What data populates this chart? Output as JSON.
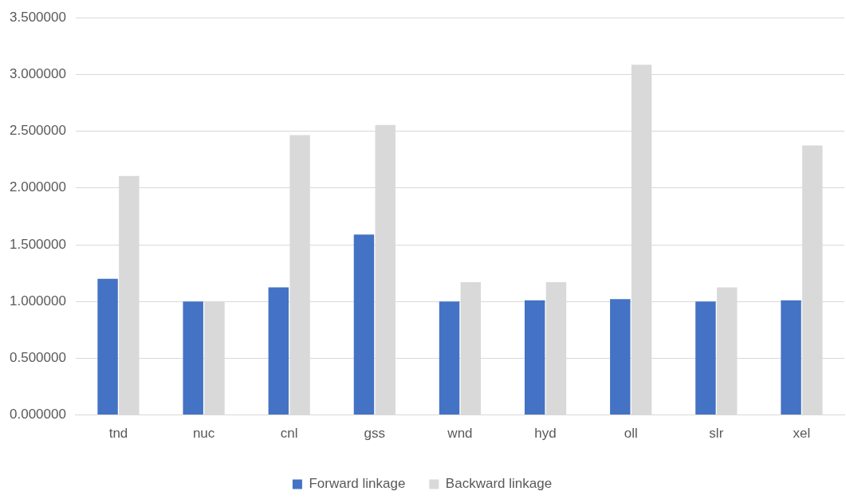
{
  "chart_data": {
    "type": "bar",
    "categories": [
      "tnd",
      "nuc",
      "cnl",
      "gss",
      "wnd",
      "hyd",
      "oll",
      "slr",
      "xel"
    ],
    "series": [
      {
        "name": "Forward linkage",
        "color": "#4472c4",
        "values": [
          1.2,
          1.0,
          1.125,
          1.59,
          1.0,
          1.01,
          1.02,
          1.0,
          1.01
        ]
      },
      {
        "name": "Backward linkage",
        "color": "#d9d9d9",
        "values": [
          2.105,
          1.0,
          2.465,
          2.555,
          1.17,
          1.17,
          3.085,
          1.125,
          2.375
        ]
      }
    ],
    "ylim": [
      0,
      3.5
    ],
    "yticks": [
      {
        "value": 0,
        "label": "0.000000"
      },
      {
        "value": 0.5,
        "label": "0.500000"
      },
      {
        "value": 1,
        "label": "1.000000"
      },
      {
        "value": 1.5,
        "label": "1.500000"
      },
      {
        "value": 2,
        "label": "2.000000"
      },
      {
        "value": 2.5,
        "label": "2.500000"
      },
      {
        "value": 3,
        "label": "3.000000"
      },
      {
        "value": 3.5,
        "label": "3.500000"
      }
    ],
    "grid": "y",
    "legend": "bottom"
  }
}
